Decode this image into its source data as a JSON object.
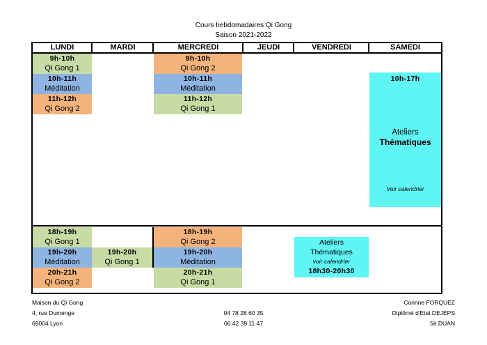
{
  "title": "Cours hebdomadaires Qi Gong",
  "season": "Saison 2021-2022",
  "days": [
    "LUNDI",
    "MARDI",
    "MERCREDI",
    "JEUDI",
    "VENDREDI",
    "SAMEDI"
  ],
  "monday_morning": [
    {
      "time": "9h-10h",
      "name": "Qi Gong 1"
    },
    {
      "time": "10h-11h",
      "name": "Méditation"
    },
    {
      "time": "11h-12h",
      "name": "Qi Gong 2"
    }
  ],
  "wednesday_morning": [
    {
      "time": "9h-10h",
      "name": "Qi Gong 2"
    },
    {
      "time": "10h-11h",
      "name": "Méditation"
    },
    {
      "time": "11h-12h",
      "name": "Qi Gong 1"
    }
  ],
  "monday_evening": [
    {
      "time": "18h-19h",
      "name": "Qi Gong 1"
    },
    {
      "time": "19h-20h",
      "name": "Méditation"
    },
    {
      "time": "20h-21h",
      "name": "Qi Gong 2"
    }
  ],
  "tuesday_evening": {
    "time": "19h-20h",
    "name": "Qi Gong 1"
  },
  "wednesday_evening": [
    {
      "time": "18h-19h",
      "name": "Qi Gong 2"
    },
    {
      "time": "19h-20h",
      "name": "Méditation"
    },
    {
      "time": "20h-21h",
      "name": "Qi Gong 1"
    }
  ],
  "friday_workshop": {
    "line1": "Ateliers",
    "line2": "Thématiques",
    "note": "voir calendrier",
    "time": "18h30-20h30"
  },
  "saturday_workshop": {
    "time": "10h-17h",
    "line1": "Ateliers",
    "line2": "Thématiques",
    "note": "Voir calendrier"
  },
  "footer": {
    "org": "Maison du Qi Gong",
    "street": "4, rue Dumenge",
    "city": "69004 Lyon",
    "phone1": "04 78 28 60 35",
    "phone2": "06 42 39 11 47",
    "teacher": "Corinne FORQUEZ",
    "diploma": "Diplômé d'Etat DEJEPS",
    "rank": "5è DUAN"
  },
  "colors": {
    "qigong1": "#c7dba4",
    "qigong2": "#f5b37c",
    "meditation": "#8eb4e3",
    "atelier": "#5ff5f5"
  }
}
